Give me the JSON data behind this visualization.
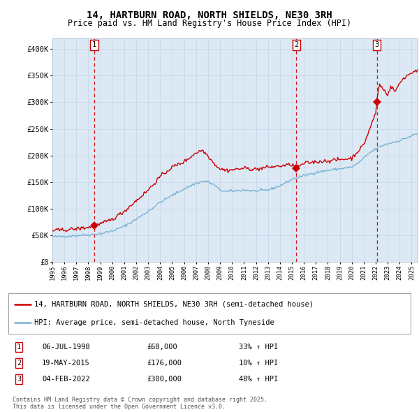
{
  "title": "14, HARTBURN ROAD, NORTH SHIELDS, NE30 3RH",
  "subtitle": "Price paid vs. HM Land Registry's House Price Index (HPI)",
  "legend_line1": "14, HARTBURN ROAD, NORTH SHIELDS, NE30 3RH (semi-detached house)",
  "legend_line2": "HPI: Average price, semi-detached house, North Tyneside",
  "footnote1": "Contains HM Land Registry data © Crown copyright and database right 2025.",
  "footnote2": "This data is licensed under the Open Government Licence v3.0.",
  "sales": [
    {
      "label": "1",
      "date": "06-JUL-1998",
      "price": "£68,000",
      "pct": "33% ↑ HPI",
      "year": 1998.51,
      "price_val": 68000
    },
    {
      "label": "2",
      "date": "19-MAY-2015",
      "price": "£176,000",
      "pct": "10% ↑ HPI",
      "year": 2015.38,
      "price_val": 176000
    },
    {
      "label": "3",
      "date": "04-FEB-2022",
      "price": "£300,000",
      "pct": "48% ↑ HPI",
      "year": 2022.09,
      "price_val": 300000
    }
  ],
  "hpi_color": "#7ab3d4",
  "price_color": "#cc0000",
  "bg_color": "#dce9f5",
  "grid_color": "#c8d8e8",
  "vline_color": "#cc0000",
  "ylim": [
    0,
    420000
  ],
  "xlim_start": 1995.0,
  "xlim_end": 2025.5,
  "yticks": [
    0,
    50000,
    100000,
    150000,
    200000,
    250000,
    300000,
    350000,
    400000
  ],
  "ytick_labels": [
    "£0",
    "£50K",
    "£100K",
    "£150K",
    "£200K",
    "£250K",
    "£300K",
    "£350K",
    "£400K"
  ]
}
